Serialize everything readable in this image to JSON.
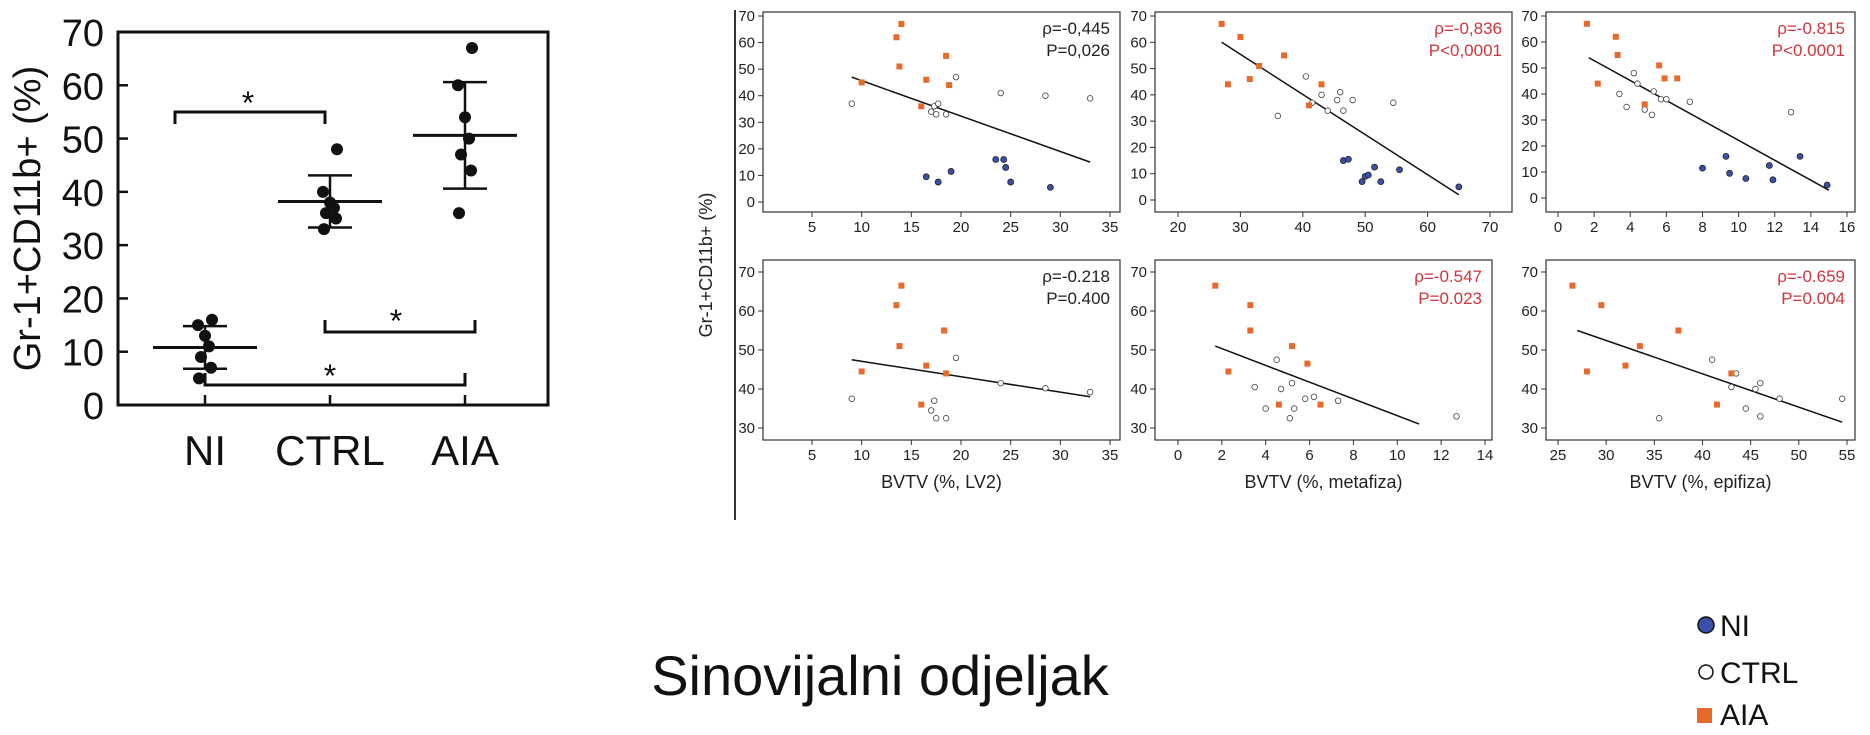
{
  "figure_caption": "Sinovijalni odjeljak",
  "shared_ylabel": "Gr-1+CD11b+ (%)",
  "colors": {
    "NI": "#3a4fa8",
    "CTRL": "#ffffff",
    "AIA": "#e86a2a",
    "significant": "#d0353b",
    "normal": "#222222"
  },
  "legend": [
    {
      "label": "NI",
      "marker": "circle-filled-blue"
    },
    {
      "label": "CTRL",
      "marker": "circle-open"
    },
    {
      "label": "AIA",
      "marker": "square-orange"
    }
  ],
  "chart_data": [
    {
      "type": "scatter",
      "title": "",
      "ylabel": "Gr-1+CD11b+ (%)",
      "xlabel": "",
      "categories": [
        "NI",
        "CTRL",
        "AIA"
      ],
      "ylim": [
        0,
        70
      ],
      "yticks": [
        0,
        10,
        20,
        30,
        40,
        50,
        60,
        70
      ],
      "series": [
        {
          "name": "NI",
          "values": [
            5,
            7,
            9,
            11,
            13,
            15,
            16
          ],
          "mean": 10.8,
          "sd_low": 6.8,
          "sd_high": 14.8
        },
        {
          "name": "CTRL",
          "values": [
            33,
            35,
            36,
            37,
            38,
            40,
            48
          ],
          "mean": 38.2,
          "sd_low": 33.3,
          "sd_high": 43.1
        },
        {
          "name": "AIA",
          "values": [
            36,
            44,
            47,
            50,
            54,
            60,
            67
          ],
          "mean": 50.6,
          "sd_low": 40.6,
          "sd_high": 60.6
        }
      ],
      "significance": [
        {
          "from": "NI",
          "to": "CTRL",
          "label": "*"
        },
        {
          "from": "CTRL",
          "to": "AIA",
          "label": "*"
        },
        {
          "from": "NI",
          "to": "AIA",
          "label": "*"
        }
      ]
    },
    {
      "type": "scatter",
      "xlabel": "",
      "xlim": [
        5,
        35
      ],
      "ylim": [
        0,
        70
      ],
      "xticks": [
        5,
        10,
        15,
        20,
        25,
        30,
        35
      ],
      "yticks": [
        0,
        10,
        20,
        30,
        40,
        50,
        60,
        70
      ],
      "stats": [
        "ρ=-0,445",
        "P=0,026"
      ],
      "significant": false,
      "regression": {
        "x": [
          9,
          33
        ],
        "y": [
          47,
          15
        ]
      },
      "series": [
        {
          "name": "NI",
          "points": [
            [
              16.5,
              9.5
            ],
            [
              17.7,
              7.5
            ],
            [
              19,
              11.5
            ],
            [
              23.5,
              16
            ],
            [
              24.3,
              16
            ],
            [
              24.5,
              13
            ],
            [
              25,
              7.5
            ],
            [
              29,
              5.5
            ]
          ]
        },
        {
          "name": "CTRL",
          "points": [
            [
              9,
              37
            ],
            [
              17,
              34
            ],
            [
              17.3,
              36
            ],
            [
              17.7,
              37
            ],
            [
              17.5,
              33
            ],
            [
              18.5,
              33
            ],
            [
              19.5,
              47
            ],
            [
              24,
              41
            ],
            [
              28.5,
              40
            ],
            [
              33,
              39
            ]
          ]
        },
        {
          "name": "AIA",
          "points": [
            [
              10,
              45
            ],
            [
              13.5,
              62
            ],
            [
              14,
              67
            ],
            [
              13.8,
              51
            ],
            [
              16,
              36
            ],
            [
              16.5,
              46
            ],
            [
              18.5,
              55
            ],
            [
              18.8,
              44
            ]
          ]
        }
      ]
    },
    {
      "type": "scatter",
      "xlabel": "",
      "xlim": [
        20,
        70
      ],
      "ylim": [
        0,
        70
      ],
      "xticks": [
        20,
        30,
        40,
        50,
        60,
        70
      ],
      "yticks": [
        0,
        10,
        20,
        30,
        40,
        50,
        60,
        70
      ],
      "stats": [
        "ρ=-0,836",
        "P<0,0001"
      ],
      "significant": true,
      "regression": {
        "x": [
          27,
          65
        ],
        "y": [
          60,
          2
        ]
      },
      "series": [
        {
          "name": "NI",
          "points": [
            [
              46.5,
              15
            ],
            [
              47.3,
              15.5
            ],
            [
              49.5,
              7
            ],
            [
              50,
              9
            ],
            [
              50.5,
              9.5
            ],
            [
              51.5,
              12.5
            ],
            [
              52.5,
              7
            ],
            [
              55.5,
              11.5
            ],
            [
              65,
              5
            ]
          ]
        },
        {
          "name": "CTRL",
          "points": [
            [
              36,
              32
            ],
            [
              40.5,
              47
            ],
            [
              41.5,
              37
            ],
            [
              43,
              40
            ],
            [
              44,
              34
            ],
            [
              45.5,
              38
            ],
            [
              46,
              41
            ],
            [
              46.5,
              34
            ],
            [
              48,
              38
            ],
            [
              54.5,
              37
            ]
          ]
        },
        {
          "name": "AIA",
          "points": [
            [
              27,
              67
            ],
            [
              28,
              44
            ],
            [
              30,
              62
            ],
            [
              31.5,
              46
            ],
            [
              33,
              51
            ],
            [
              37,
              55
            ],
            [
              41,
              36
            ],
            [
              43,
              44
            ]
          ]
        }
      ]
    },
    {
      "type": "scatter",
      "xlabel": "",
      "xlim": [
        0,
        16
      ],
      "ylim": [
        0,
        70
      ],
      "xticks": [
        0,
        2,
        4,
        6,
        8,
        10,
        12,
        14,
        16
      ],
      "yticks": [
        0,
        10,
        20,
        30,
        40,
        50,
        60,
        70
      ],
      "stats": [
        "ρ=-0.815",
        "P<0.0001"
      ],
      "significant": true,
      "regression": {
        "x": [
          1.7,
          15
        ],
        "y": [
          54,
          3
        ]
      },
      "series": [
        {
          "name": "NI",
          "points": [
            [
              8,
              11.5
            ],
            [
              9.3,
              16
            ],
            [
              9.5,
              9.5
            ],
            [
              10.4,
              7.5
            ],
            [
              11.7,
              12.5
            ],
            [
              11.9,
              7
            ],
            [
              13.4,
              16
            ],
            [
              14.9,
              5
            ]
          ]
        },
        {
          "name": "CTRL",
          "points": [
            [
              3.4,
              40
            ],
            [
              3.8,
              35
            ],
            [
              4.2,
              48
            ],
            [
              4.4,
              44
            ],
            [
              4.8,
              34
            ],
            [
              5.2,
              32
            ],
            [
              5.3,
              41
            ],
            [
              5.7,
              38
            ],
            [
              6,
              38
            ],
            [
              7.3,
              37
            ],
            [
              12.9,
              33
            ]
          ]
        },
        {
          "name": "AIA",
          "points": [
            [
              1.6,
              67
            ],
            [
              2.2,
              44
            ],
            [
              3.2,
              62
            ],
            [
              3.3,
              55
            ],
            [
              4.8,
              36
            ],
            [
              5.6,
              51
            ],
            [
              5.9,
              46
            ],
            [
              6.6,
              46
            ]
          ]
        }
      ]
    },
    {
      "type": "scatter",
      "xlabel": "BVTV (%, LV2)",
      "xlim": [
        5,
        35
      ],
      "ylim": [
        30,
        70
      ],
      "xticks": [
        5,
        10,
        15,
        20,
        25,
        30,
        35
      ],
      "yticks": [
        30,
        40,
        50,
        60,
        70
      ],
      "stats": [
        "ρ=-0.218",
        "P=0.400"
      ],
      "significant": false,
      "regression": {
        "x": [
          9,
          33
        ],
        "y": [
          47.5,
          38
        ]
      },
      "series": [
        {
          "name": "CTRL",
          "points": [
            [
              9,
              37.5
            ],
            [
              17,
              34.5
            ],
            [
              17.3,
              37
            ],
            [
              17.5,
              32.5
            ],
            [
              18.5,
              32.5
            ],
            [
              19.5,
              48
            ],
            [
              24,
              41.5
            ],
            [
              28.5,
              40.2
            ],
            [
              33,
              39.2
            ]
          ]
        },
        {
          "name": "AIA",
          "points": [
            [
              10,
              44.5
            ],
            [
              13.5,
              61.5
            ],
            [
              14,
              66.5
            ],
            [
              13.8,
              51
            ],
            [
              16,
              36
            ],
            [
              16.5,
              46
            ],
            [
              18.3,
              55
            ],
            [
              18.5,
              44
            ]
          ]
        }
      ]
    },
    {
      "type": "scatter",
      "xlabel": "BVTV (%, metafiza)",
      "xlim": [
        0,
        14
      ],
      "ylim": [
        30,
        70
      ],
      "xticks": [
        0,
        2,
        4,
        6,
        8,
        10,
        12,
        14
      ],
      "yticks": [
        30,
        40,
        50,
        60,
        70
      ],
      "stats": [
        "ρ=-0.547",
        "P=0.023"
      ],
      "significant": true,
      "regression": {
        "x": [
          1.7,
          11
        ],
        "y": [
          51,
          31
        ]
      },
      "series": [
        {
          "name": "CTRL",
          "points": [
            [
              3.5,
              40.5
            ],
            [
              4,
              35
            ],
            [
              4.5,
              47.5
            ],
            [
              4.7,
              40
            ],
            [
              5.1,
              32.5
            ],
            [
              5.2,
              41.5
            ],
            [
              5.3,
              35
            ],
            [
              5.8,
              37.5
            ],
            [
              6.2,
              38
            ],
            [
              7.3,
              37
            ],
            [
              12.7,
              33
            ]
          ]
        },
        {
          "name": "AIA",
          "points": [
            [
              1.7,
              66.5
            ],
            [
              2.3,
              44.5
            ],
            [
              3.3,
              61.5
            ],
            [
              3.3,
              55
            ],
            [
              4.6,
              36
            ],
            [
              5.2,
              51
            ],
            [
              5.9,
              46.5
            ],
            [
              6.5,
              36
            ]
          ]
        }
      ]
    },
    {
      "type": "scatter",
      "xlabel": "BVTV (%, epifiza)",
      "xlim": [
        25,
        55
      ],
      "ylim": [
        30,
        70
      ],
      "xticks": [
        25,
        30,
        35,
        40,
        45,
        50,
        55
      ],
      "yticks": [
        30,
        40,
        50,
        60,
        70
      ],
      "stats": [
        "ρ=-0.659",
        "P=0.004"
      ],
      "significant": true,
      "regression": {
        "x": [
          27,
          54.5
        ],
        "y": [
          55,
          31.5
        ]
      },
      "series": [
        {
          "name": "CTRL",
          "points": [
            [
              35.5,
              32.5
            ],
            [
              41,
              47.5
            ],
            [
              43,
              40.5
            ],
            [
              43.5,
              44
            ],
            [
              44.5,
              35
            ],
            [
              45.5,
              40
            ],
            [
              46,
              41.5
            ],
            [
              46,
              33
            ],
            [
              48,
              37.5
            ],
            [
              54.5,
              37.5
            ]
          ]
        },
        {
          "name": "AIA",
          "points": [
            [
              26.5,
              66.5
            ],
            [
              28,
              44.5
            ],
            [
              29.5,
              61.5
            ],
            [
              32,
              46
            ],
            [
              33.5,
              51
            ],
            [
              37.5,
              55
            ],
            [
              41.5,
              36
            ],
            [
              43,
              44
            ]
          ]
        }
      ]
    }
  ]
}
